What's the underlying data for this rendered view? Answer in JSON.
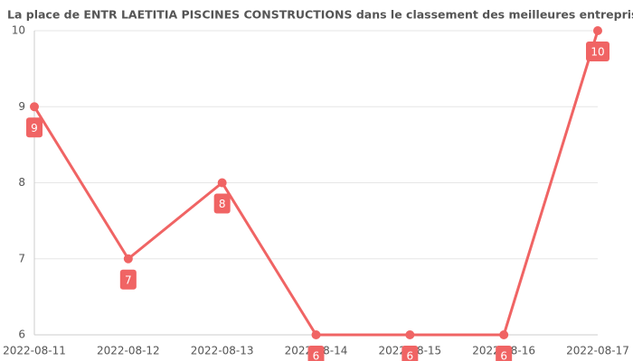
{
  "chart_data": {
    "type": "line",
    "title": "La place de ENTR LAETITIA PISCINES CONSTRUCTIONS dans le classement des meilleures entreprises",
    "categories": [
      "2022-08-11",
      "2022-08-12",
      "2022-08-13",
      "2022-08-14",
      "2022-08-15",
      "2022-08-16",
      "2022-08-17"
    ],
    "values": [
      9,
      7,
      8,
      6,
      6,
      6,
      10
    ],
    "color": "#f06464",
    "ylim": [
      6,
      10
    ],
    "yticks": [
      6,
      7,
      8,
      9,
      10
    ],
    "grid": true
  }
}
